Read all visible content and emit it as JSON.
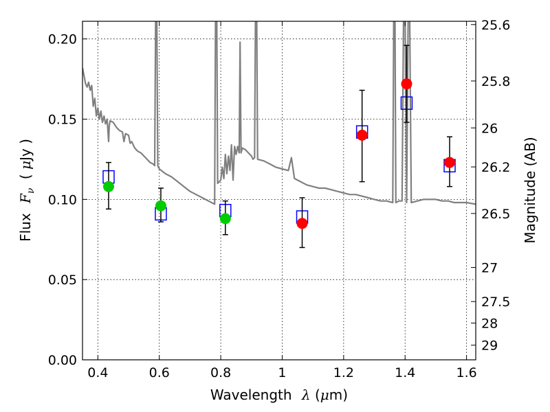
{
  "chart_data": {
    "type": "scatter",
    "xlabel": {
      "text": "Wavelength",
      "sym": "λ",
      "unit_open": "(",
      "unit_mu": "μ",
      "unit_rest": "m)"
    },
    "ylabel": {
      "text": "Flux",
      "sym": "F",
      "sub": "ν",
      "unit_open": "(",
      "unit_mu": "μ",
      "unit_rest": "Jy )"
    },
    "y2label": "Magnitude (AB)",
    "xlim": [
      0.35,
      1.63
    ],
    "ylim": [
      0.0,
      0.211
    ],
    "grid": true,
    "x_ticks": [
      {
        "v": 0.4,
        "label": "0.4"
      },
      {
        "v": 0.6,
        "label": "0.6"
      },
      {
        "v": 0.8,
        "label": "0.8"
      },
      {
        "v": 1.0,
        "label": "1"
      },
      {
        "v": 1.2,
        "label": "1.2"
      },
      {
        "v": 1.4,
        "label": "1.4"
      },
      {
        "v": 1.6,
        "label": "1.6"
      }
    ],
    "y_ticks": [
      {
        "v": 0.0,
        "label": "0.00"
      },
      {
        "v": 0.05,
        "label": "0.05"
      },
      {
        "v": 0.1,
        "label": "0.10"
      },
      {
        "v": 0.15,
        "label": "0.15"
      },
      {
        "v": 0.2,
        "label": "0.20"
      }
    ],
    "y2_ticks": [
      {
        "mag": 25.6,
        "label": "25.6"
      },
      {
        "mag": 25.8,
        "label": "25.8"
      },
      {
        "mag": 26.0,
        "label": "26"
      },
      {
        "mag": 26.2,
        "label": "26.2"
      },
      {
        "mag": 26.5,
        "label": "26.5"
      },
      {
        "mag": 27.0,
        "label": "27"
      },
      {
        "mag": 27.5,
        "label": "27.5"
      },
      {
        "mag": 28.0,
        "label": "28"
      },
      {
        "mag": 29.0,
        "label": "29"
      }
    ],
    "series": [
      {
        "kind": "model_spectrum",
        "color": "#808080",
        "points": [
          [
            0.35,
            0.182
          ],
          [
            0.36,
            0.172
          ],
          [
            0.365,
            0.17
          ],
          [
            0.37,
            0.173
          ],
          [
            0.375,
            0.168
          ],
          [
            0.38,
            0.171
          ],
          [
            0.385,
            0.158
          ],
          [
            0.39,
            0.163
          ],
          [
            0.395,
            0.152
          ],
          [
            0.4,
            0.157
          ],
          [
            0.405,
            0.15
          ],
          [
            0.41,
            0.155
          ],
          [
            0.415,
            0.148
          ],
          [
            0.42,
            0.152
          ],
          [
            0.425,
            0.147
          ],
          [
            0.43,
            0.15
          ],
          [
            0.433,
            0.142
          ],
          [
            0.435,
            0.136
          ],
          [
            0.437,
            0.146
          ],
          [
            0.44,
            0.149
          ],
          [
            0.45,
            0.148
          ],
          [
            0.46,
            0.145
          ],
          [
            0.47,
            0.143
          ],
          [
            0.48,
            0.142
          ],
          [
            0.485,
            0.136
          ],
          [
            0.49,
            0.141
          ],
          [
            0.5,
            0.14
          ],
          [
            0.505,
            0.135
          ],
          [
            0.51,
            0.136
          ],
          [
            0.52,
            0.132
          ],
          [
            0.53,
            0.13
          ],
          [
            0.54,
            0.129
          ],
          [
            0.55,
            0.127
          ],
          [
            0.56,
            0.125
          ],
          [
            0.57,
            0.123
          ],
          [
            0.58,
            0.122
          ],
          [
            0.585,
            0.121
          ],
          [
            0.588,
            0.215
          ],
          [
            0.592,
            0.215
          ],
          [
            0.595,
            0.121
          ],
          [
            0.6,
            0.119
          ],
          [
            0.62,
            0.116
          ],
          [
            0.64,
            0.114
          ],
          [
            0.66,
            0.111
          ],
          [
            0.68,
            0.108
          ],
          [
            0.7,
            0.105
          ],
          [
            0.72,
            0.103
          ],
          [
            0.74,
            0.101
          ],
          [
            0.76,
            0.099
          ],
          [
            0.77,
            0.098
          ],
          [
            0.78,
            0.097
          ],
          [
            0.783,
            0.215
          ],
          [
            0.787,
            0.215
          ],
          [
            0.79,
            0.11
          ],
          [
            0.8,
            0.112
          ],
          [
            0.805,
            0.12
          ],
          [
            0.81,
            0.113
          ],
          [
            0.815,
            0.128
          ],
          [
            0.82,
            0.116
          ],
          [
            0.825,
            0.127
          ],
          [
            0.83,
            0.118
          ],
          [
            0.835,
            0.134
          ],
          [
            0.84,
            0.112
          ],
          [
            0.845,
            0.133
          ],
          [
            0.85,
            0.128
          ],
          [
            0.855,
            0.133
          ],
          [
            0.86,
            0.129
          ],
          [
            0.863,
            0.198
          ],
          [
            0.866,
            0.129
          ],
          [
            0.87,
            0.132
          ],
          [
            0.88,
            0.131
          ],
          [
            0.89,
            0.129
          ],
          [
            0.9,
            0.127
          ],
          [
            0.905,
            0.125
          ],
          [
            0.91,
            0.126
          ],
          [
            0.913,
            0.215
          ],
          [
            0.917,
            0.215
          ],
          [
            0.92,
            0.125
          ],
          [
            0.94,
            0.124
          ],
          [
            0.96,
            0.122
          ],
          [
            0.98,
            0.12
          ],
          [
            1.0,
            0.119
          ],
          [
            1.02,
            0.118
          ],
          [
            1.03,
            0.126
          ],
          [
            1.04,
            0.113
          ],
          [
            1.06,
            0.111
          ],
          [
            1.08,
            0.109
          ],
          [
            1.1,
            0.108
          ],
          [
            1.12,
            0.107
          ],
          [
            1.14,
            0.107
          ],
          [
            1.16,
            0.106
          ],
          [
            1.18,
            0.105
          ],
          [
            1.2,
            0.104
          ],
          [
            1.22,
            0.103
          ],
          [
            1.24,
            0.103
          ],
          [
            1.26,
            0.102
          ],
          [
            1.28,
            0.101
          ],
          [
            1.3,
            0.1
          ],
          [
            1.32,
            0.099
          ],
          [
            1.34,
            0.099
          ],
          [
            1.36,
            0.098
          ],
          [
            1.363,
            0.215
          ],
          [
            1.367,
            0.215
          ],
          [
            1.37,
            0.098
          ],
          [
            1.38,
            0.099
          ],
          [
            1.39,
            0.099
          ],
          [
            1.395,
            0.215
          ],
          [
            1.4,
            0.215
          ],
          [
            1.405,
            0.098
          ],
          [
            1.41,
            0.215
          ],
          [
            1.415,
            0.215
          ],
          [
            1.42,
            0.098
          ],
          [
            1.44,
            0.099
          ],
          [
            1.46,
            0.1
          ],
          [
            1.48,
            0.1
          ],
          [
            1.5,
            0.1
          ],
          [
            1.52,
            0.099
          ],
          [
            1.54,
            0.099
          ],
          [
            1.56,
            0.098
          ],
          [
            1.58,
            0.098
          ],
          [
            1.6,
            0.098
          ],
          [
            1.63,
            0.097
          ]
        ]
      },
      {
        "kind": "model_bandflux_squares",
        "color": "#0000ff",
        "points": [
          [
            0.435,
            0.114
          ],
          [
            0.605,
            0.091
          ],
          [
            0.815,
            0.093
          ],
          [
            1.065,
            0.089
          ],
          [
            1.26,
            0.142
          ],
          [
            1.405,
            0.16
          ],
          [
            1.545,
            0.121
          ]
        ]
      },
      {
        "kind": "observed_errorbars",
        "color": "#000000",
        "points": [
          {
            "x": 0.435,
            "lo": 0.094,
            "hi": 0.123
          },
          {
            "x": 0.605,
            "lo": 0.086,
            "hi": 0.107
          },
          {
            "x": 0.815,
            "lo": 0.078,
            "hi": 0.099
          },
          {
            "x": 1.065,
            "lo": 0.07,
            "hi": 0.101
          },
          {
            "x": 1.26,
            "lo": 0.111,
            "hi": 0.168
          },
          {
            "x": 1.405,
            "lo": 0.148,
            "hi": 0.196
          },
          {
            "x": 1.545,
            "lo": 0.108,
            "hi": 0.139
          }
        ]
      },
      {
        "kind": "observed_optical",
        "color": "#00cc00",
        "points": [
          [
            0.435,
            0.108
          ],
          [
            0.605,
            0.096
          ],
          [
            0.815,
            0.088
          ]
        ]
      },
      {
        "kind": "observed_nir",
        "color": "#ff0000",
        "points": [
          [
            1.065,
            0.085
          ],
          [
            1.26,
            0.14
          ],
          [
            1.405,
            0.172
          ],
          [
            1.545,
            0.123
          ]
        ]
      }
    ]
  }
}
